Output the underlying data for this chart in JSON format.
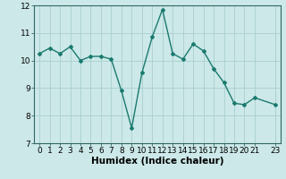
{
  "x": [
    0,
    1,
    2,
    3,
    4,
    5,
    6,
    7,
    8,
    9,
    10,
    11,
    12,
    13,
    14,
    15,
    16,
    17,
    18,
    19,
    20,
    21,
    23
  ],
  "y": [
    10.25,
    10.45,
    10.25,
    10.5,
    10.0,
    10.15,
    10.15,
    10.05,
    8.9,
    7.55,
    9.55,
    10.85,
    11.85,
    10.25,
    10.05,
    10.6,
    10.35,
    9.7,
    9.2,
    8.45,
    8.4,
    8.65,
    8.4
  ],
  "line_color": "#1a7a6e",
  "marker": "D",
  "marker_size": 2.0,
  "linewidth": 1.0,
  "bg_color": "#cce8e8",
  "grid_color": "#aacece",
  "xlabel": "Humidex (Indice chaleur)",
  "xlim": [
    -0.5,
    23.5
  ],
  "ylim": [
    7,
    12
  ],
  "yticks": [
    7,
    8,
    9,
    10,
    11,
    12
  ],
  "xticks": [
    0,
    1,
    2,
    3,
    4,
    5,
    6,
    7,
    8,
    9,
    10,
    11,
    12,
    13,
    14,
    15,
    16,
    17,
    18,
    19,
    20,
    21,
    23
  ],
  "xlabel_fontsize": 7.5,
  "tick_fontsize": 6.5
}
